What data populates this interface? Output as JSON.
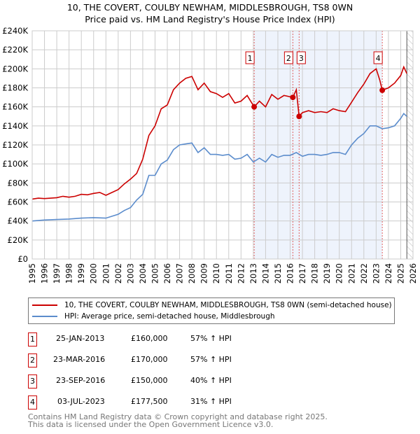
{
  "title": "10, THE COVERT, COULBY NEWHAM, MIDDLESBROUGH, TS8 0WN",
  "subtitle": "Price paid vs. HM Land Registry's House Price Index (HPI)",
  "chart_data": {
    "type": "line",
    "ylim": [
      0,
      240000
    ],
    "xlim": [
      1995,
      2026
    ],
    "yticks": [
      "£0",
      "£20K",
      "£40K",
      "£60K",
      "£80K",
      "£100K",
      "£120K",
      "£140K",
      "£160K",
      "£180K",
      "£200K",
      "£220K",
      "£240K"
    ],
    "xticks": [
      "1995",
      "1996",
      "1997",
      "1998",
      "1999",
      "2000",
      "2001",
      "2002",
      "2003",
      "2004",
      "2005",
      "2006",
      "2007",
      "2008",
      "2009",
      "2010",
      "2011",
      "2012",
      "2013",
      "2014",
      "2015",
      "2016",
      "2017",
      "2018",
      "2019",
      "2020",
      "2021",
      "2022",
      "2023",
      "2024",
      "2025",
      "2026"
    ],
    "grid": true,
    "series": [
      {
        "name": "10, THE COVERT, COULBY NEWHAM, MIDDLESBROUGH, TS8 0WN (semi-detached house)",
        "color": "#cc0000",
        "x": [
          1995,
          1995.5,
          1996,
          1996.5,
          1997,
          1997.5,
          1998,
          1998.5,
          1999,
          1999.5,
          2000,
          2000.5,
          2001,
          2001.5,
          2002,
          2002.5,
          2003,
          2003.5,
          2004,
          2004.5,
          2005,
          2005.5,
          2006,
          2006.5,
          2007,
          2007.5,
          2008,
          2008.5,
          2009,
          2009.5,
          2010,
          2010.5,
          2011,
          2011.5,
          2012,
          2012.5,
          2013.07,
          2013.5,
          2014,
          2014.5,
          2015,
          2015.5,
          2016.22,
          2016.5,
          2016.73,
          2017,
          2017.5,
          2018,
          2018.5,
          2019,
          2019.5,
          2020,
          2020.5,
          2021,
          2021.5,
          2022,
          2022.5,
          2023,
          2023.3,
          2023.5,
          2024,
          2024.5,
          2025,
          2025.25,
          2025.5
        ],
        "y": [
          63000,
          64000,
          63500,
          64000,
          64500,
          66000,
          65000,
          66000,
          68000,
          67500,
          69000,
          70000,
          67000,
          70000,
          73000,
          79000,
          84000,
          90000,
          105000,
          130000,
          140000,
          158000,
          162000,
          178000,
          185000,
          190000,
          192000,
          178000,
          185000,
          176000,
          174000,
          170000,
          174000,
          164000,
          166000,
          172000,
          160000,
          166000,
          160000,
          173000,
          168000,
          172000,
          170000,
          178000,
          150000,
          154000,
          156000,
          154000,
          155000,
          154000,
          158000,
          156000,
          155000,
          165000,
          175000,
          184000,
          195000,
          200000,
          188000,
          177500,
          180000,
          185000,
          193000,
          202000,
          195000
        ]
      },
      {
        "name": "HPI: Average price, semi-detached house, Middlesbrough",
        "color": "#5b8ccc",
        "x": [
          1995,
          1996,
          1997,
          1998,
          1999,
          2000,
          2001,
          2001.5,
          2002,
          2002.5,
          2003,
          2003.5,
          2004,
          2004.5,
          2005,
          2005.5,
          2006,
          2006.5,
          2007,
          2007.5,
          2008,
          2008.5,
          2009,
          2009.5,
          2010,
          2010.5,
          2011,
          2011.5,
          2012,
          2012.5,
          2013,
          2013.5,
          2014,
          2014.5,
          2015,
          2015.5,
          2016,
          2016.5,
          2017,
          2017.5,
          2018,
          2018.5,
          2019,
          2019.5,
          2020,
          2020.5,
          2021,
          2021.5,
          2022,
          2022.5,
          2023,
          2023.5,
          2024,
          2024.5,
          2025,
          2025.25,
          2025.5
        ],
        "y": [
          40000,
          41000,
          41500,
          42000,
          43000,
          43500,
          43000,
          45000,
          47000,
          51000,
          54000,
          62000,
          68000,
          88000,
          88000,
          100000,
          104000,
          115000,
          120000,
          121000,
          122000,
          112000,
          117000,
          110000,
          110000,
          109000,
          110000,
          105000,
          106000,
          110000,
          102000,
          106000,
          102000,
          110000,
          107000,
          109000,
          109000,
          112000,
          108000,
          110000,
          110000,
          109000,
          110000,
          112000,
          112000,
          110000,
          120000,
          127000,
          132000,
          140000,
          140000,
          137000,
          138000,
          140000,
          148000,
          153000,
          150000
        ]
      }
    ],
    "sales": [
      {
        "label": "1",
        "x": 2013.07,
        "price": 160000
      },
      {
        "label": "2",
        "x": 2016.22,
        "price": 170000
      },
      {
        "label": "3",
        "x": 2016.73,
        "price": 150000
      },
      {
        "label": "4",
        "x": 2023.5,
        "price": 177500
      }
    ]
  },
  "transactions": [
    {
      "num": "1",
      "date": "25-JAN-2013",
      "price": "£160,000",
      "hpi": "57% ↑ HPI"
    },
    {
      "num": "2",
      "date": "23-MAR-2016",
      "price": "£170,000",
      "hpi": "57% ↑ HPI"
    },
    {
      "num": "3",
      "date": "23-SEP-2016",
      "price": "£150,000",
      "hpi": "40% ↑ HPI"
    },
    {
      "num": "4",
      "date": "03-JUL-2023",
      "price": "£177,500",
      "hpi": "31% ↑ HPI"
    }
  ],
  "footer": {
    "line1": "Contains HM Land Registry data © Crown copyright and database right 2025.",
    "line2": "This data is licensed under the Open Government Licence v3.0."
  }
}
